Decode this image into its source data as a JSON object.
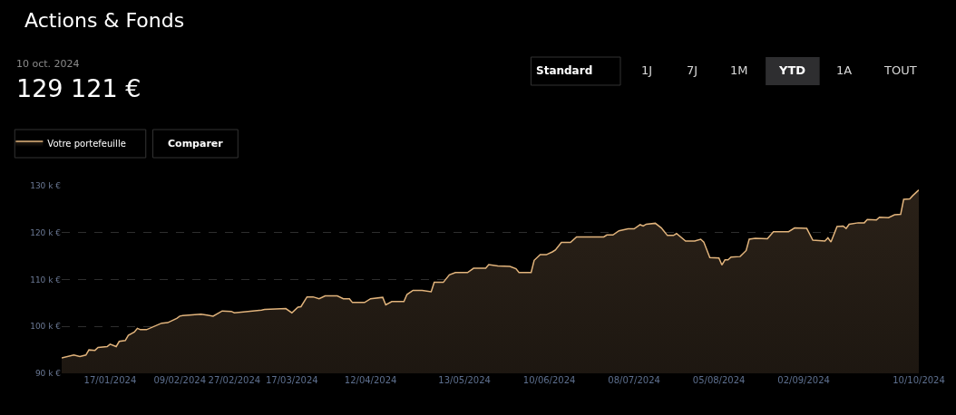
{
  "chart_data": {
    "type": "area",
    "title": "Actions & Fonds",
    "annotations": [
      "10 oct. 2024",
      "129 121 €",
      "Standard",
      "1J",
      "7J",
      "1M",
      "YTD",
      "1A",
      "TOUT",
      "Comparer"
    ],
    "x": [
      "2024-01-01",
      "2024-01-05",
      "2024-01-07",
      "2024-01-09",
      "2024-01-10",
      "2024-01-12",
      "2024-01-13",
      "2024-01-16",
      "2024-01-17",
      "2024-01-19",
      "2024-01-20",
      "2024-01-22",
      "2024-01-23",
      "2024-01-25",
      "2024-01-26",
      "2024-01-27",
      "2024-01-29",
      "2024-02-03",
      "2024-02-05",
      "2024-02-08",
      "2024-02-09",
      "2024-02-10",
      "2024-02-16",
      "2024-02-18",
      "2024-02-20",
      "2024-02-23",
      "2024-02-26",
      "2024-02-27",
      "2024-03-07",
      "2024-03-08",
      "2024-03-15",
      "2024-03-17",
      "2024-03-19",
      "2024-03-20",
      "2024-03-22",
      "2024-03-24",
      "2024-03-26",
      "2024-03-28",
      "2024-04-01",
      "2024-04-03",
      "2024-04-05",
      "2024-04-06",
      "2024-04-10",
      "2024-04-12",
      "2024-04-16",
      "2024-04-17",
      "2024-04-19",
      "2024-04-23",
      "2024-04-24",
      "2024-04-26",
      "2024-04-29",
      "2024-05-02",
      "2024-05-03",
      "2024-05-06",
      "2024-05-08",
      "2024-05-10",
      "2024-05-14",
      "2024-05-16",
      "2024-05-20",
      "2024-05-21",
      "2024-05-24",
      "2024-05-28",
      "2024-05-30",
      "2024-05-31",
      "2024-06-04",
      "2024-06-05",
      "2024-06-07",
      "2024-06-09",
      "2024-06-11",
      "2024-06-12",
      "2024-06-14",
      "2024-06-17",
      "2024-06-19",
      "2024-06-28",
      "2024-06-29",
      "2024-07-01",
      "2024-07-03",
      "2024-07-06",
      "2024-07-08",
      "2024-07-10",
      "2024-07-11",
      "2024-07-12",
      "2024-07-15",
      "2024-07-17",
      "2024-07-19",
      "2024-07-21",
      "2024-07-22",
      "2024-07-25",
      "2024-07-28",
      "2024-07-30",
      "2024-07-31",
      "2024-08-02",
      "2024-08-05",
      "2024-08-06",
      "2024-08-07",
      "2024-08-08",
      "2024-08-09",
      "2024-08-12",
      "2024-08-14",
      "2024-08-15",
      "2024-08-17",
      "2024-08-21",
      "2024-08-23",
      "2024-08-28",
      "2024-08-30",
      "2024-09-03",
      "2024-09-05",
      "2024-09-09",
      "2024-09-10",
      "2024-09-11",
      "2024-09-13",
      "2024-09-15",
      "2024-09-16",
      "2024-09-17",
      "2024-09-20",
      "2024-09-22",
      "2024-09-23",
      "2024-09-26",
      "2024-09-27",
      "2024-09-30",
      "2024-10-02",
      "2024-10-04",
      "2024-10-05",
      "2024-10-07",
      "2024-10-08",
      "2024-10-10"
    ],
    "series": [
      {
        "name": "Votre portefeuille",
        "color": "#e2b47c",
        "values": [
          93.3,
          93.9,
          93.6,
          93.9,
          95.0,
          94.9,
          95.5,
          95.7,
          96.2,
          95.7,
          96.8,
          97.0,
          98.1,
          98.8,
          99.6,
          99.3,
          99.3,
          100.7,
          100.8,
          101.7,
          102.2,
          102.3,
          102.6,
          102.4,
          102.2,
          103.3,
          103.2,
          102.9,
          103.5,
          103.6,
          103.8,
          102.9,
          104.1,
          104.2,
          106.3,
          106.3,
          105.9,
          106.5,
          106.5,
          105.9,
          105.9,
          105.1,
          105.1,
          105.9,
          106.2,
          104.6,
          105.3,
          105.3,
          106.8,
          107.7,
          107.7,
          107.4,
          109.4,
          109.4,
          111.0,
          111.5,
          111.5,
          112.4,
          112.4,
          113.2,
          112.9,
          112.8,
          112.3,
          111.5,
          111.5,
          114.1,
          115.3,
          115.3,
          115.9,
          116.3,
          117.9,
          117.9,
          119.1,
          119.1,
          119.5,
          119.5,
          120.4,
          120.8,
          120.8,
          121.7,
          121.4,
          121.8,
          122.0,
          121.0,
          119.4,
          119.4,
          119.8,
          118.2,
          118.2,
          118.6,
          118.0,
          114.7,
          114.6,
          113.1,
          114.2,
          114.2,
          114.8,
          114.9,
          116.2,
          118.6,
          118.8,
          118.7,
          120.2,
          120.2,
          121.0,
          120.9,
          118.4,
          118.2,
          118.9,
          118.0,
          121.3,
          121.4,
          120.9,
          121.8,
          122.1,
          122.1,
          122.8,
          122.7,
          123.3,
          123.2,
          123.8,
          123.9,
          127.1,
          127.2,
          127.9,
          129.1
        ]
      }
    ],
    "xlim": [
      "2024-01-01",
      "2024-10-10"
    ],
    "xticks": [
      {
        "value": "2024-01-17",
        "label": "17/01/2024"
      },
      {
        "value": "2024-02-09",
        "label": "09/02/2024"
      },
      {
        "value": "2024-02-27",
        "label": "27/02/2024"
      },
      {
        "value": "2024-03-17",
        "label": "17/03/2024"
      },
      {
        "value": "2024-04-12",
        "label": "12/04/2024"
      },
      {
        "value": "2024-05-13",
        "label": "13/05/2024"
      },
      {
        "value": "2024-06-10",
        "label": "10/06/2024"
      },
      {
        "value": "2024-07-08",
        "label": "08/07/2024"
      },
      {
        "value": "2024-08-05",
        "label": "05/08/2024"
      },
      {
        "value": "2024-09-02",
        "label": "02/09/2024"
      },
      {
        "value": "2024-10-10",
        "label": "10/10/2024"
      }
    ],
    "ylim": [
      90,
      130
    ],
    "yticks": [
      {
        "value": 90,
        "label": "90 k €"
      },
      {
        "value": 100,
        "label": "100 k €"
      },
      {
        "value": 110,
        "label": "110 k €"
      },
      {
        "value": 120,
        "label": "120 k €"
      },
      {
        "value": 130,
        "label": "130 k €"
      }
    ],
    "grid": "y",
    "legend": "top left",
    "marker": "none",
    "line_style": "solid"
  }
}
